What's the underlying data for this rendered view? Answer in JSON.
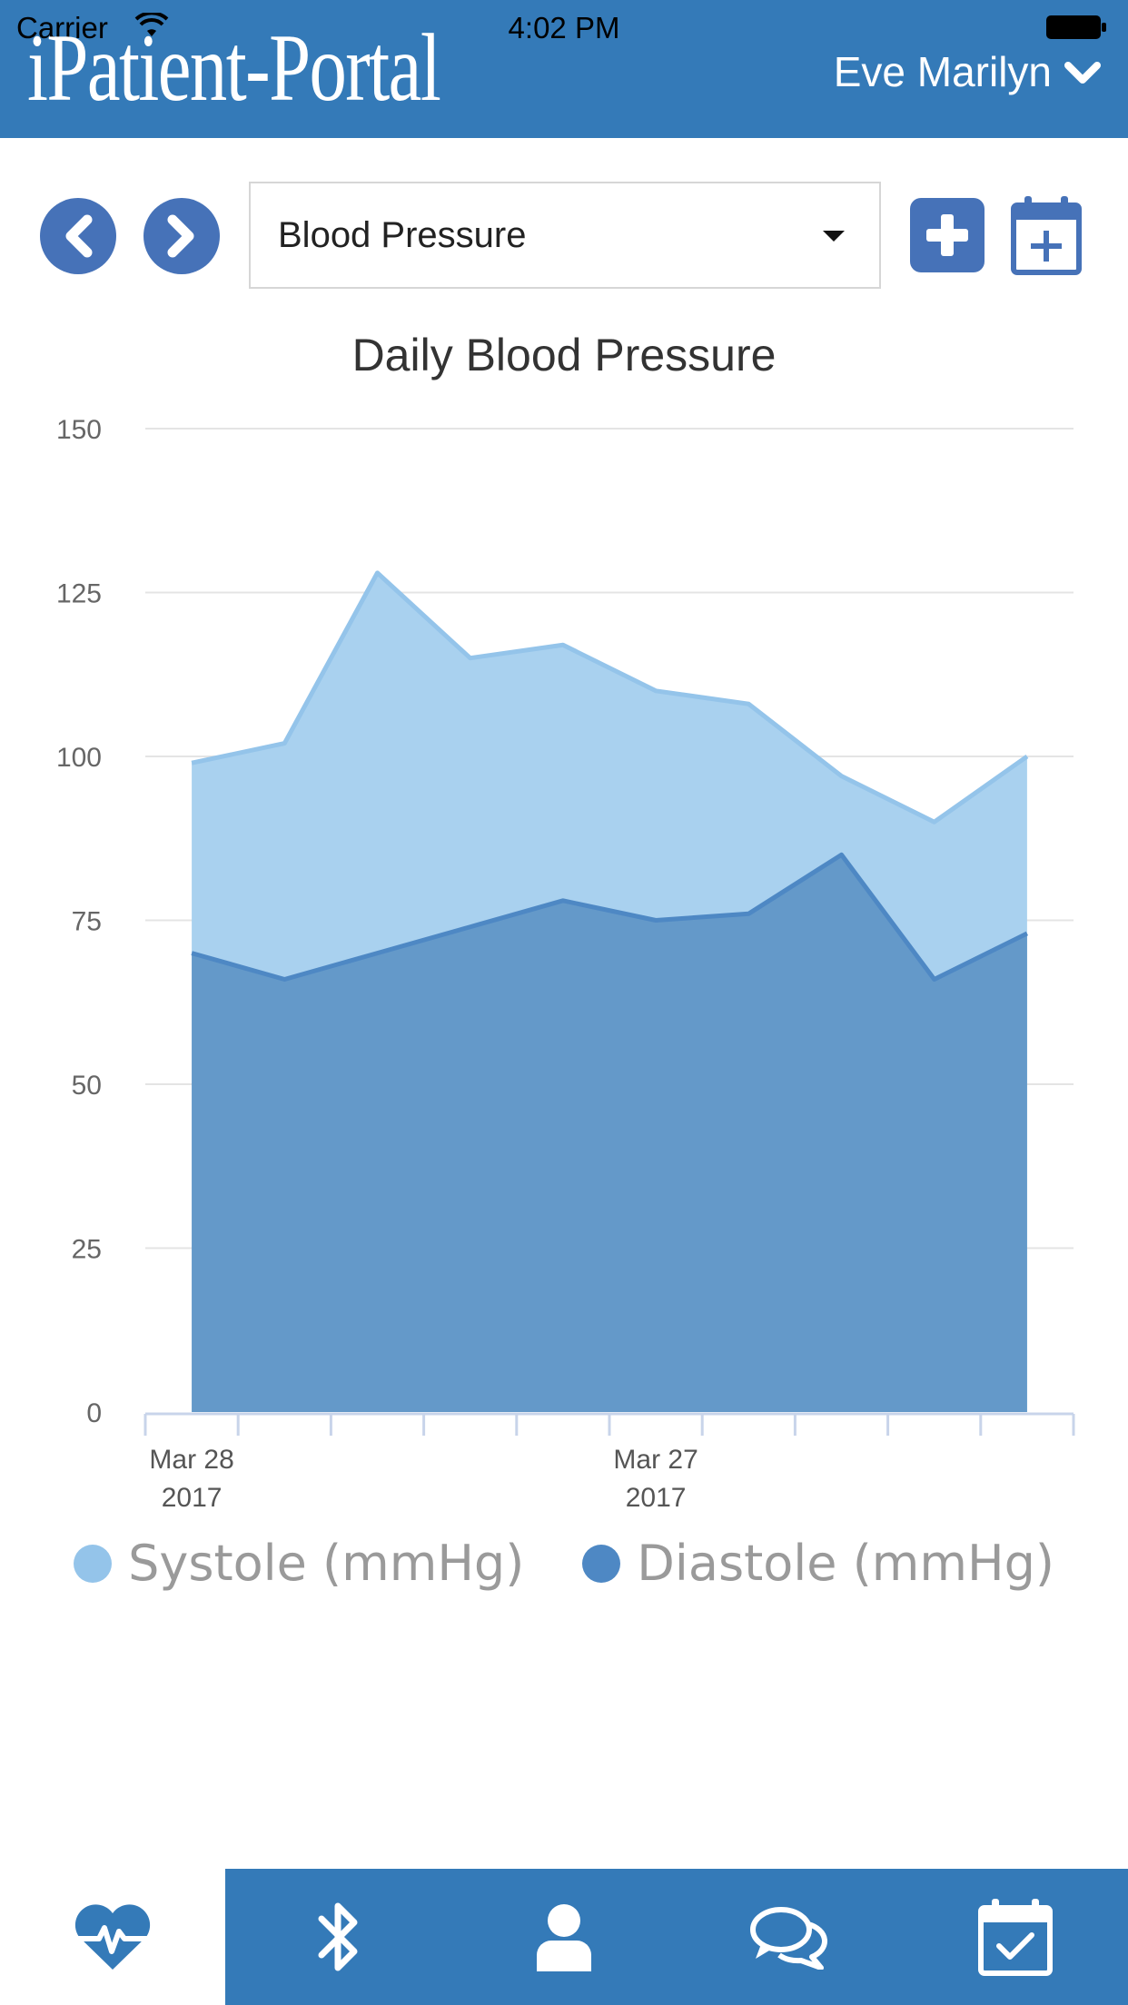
{
  "status_bar": {
    "carrier": "Carrier",
    "time": "4:02 PM"
  },
  "header": {
    "brand": "iPatient-Portal",
    "user_name": "Eve Marilyn"
  },
  "toolbar": {
    "metric_selected": "Blood Pressure"
  },
  "colors": {
    "brand": "#347ab8",
    "button": "#4672b8",
    "systole": "#94c4ea",
    "diastole": "#4e88c4"
  },
  "chart_data": {
    "type": "area",
    "title": "Daily Blood Pressure",
    "ylim": [
      0,
      150
    ],
    "y_ticks": [
      0,
      25,
      50,
      75,
      100,
      125,
      150
    ],
    "x_tick_labels": [
      {
        "index": 0,
        "line1": "Mar 28",
        "line2": "2017"
      },
      {
        "index": 5,
        "line1": "Mar 27",
        "line2": "2017"
      }
    ],
    "x_count": 10,
    "series": [
      {
        "name": "Systole (mmHg)",
        "values": [
          99,
          102,
          128,
          115,
          117,
          110,
          108,
          97,
          90,
          100
        ]
      },
      {
        "name": "Diastole (mmHg)",
        "values": [
          70,
          66,
          70,
          74,
          78,
          75,
          76,
          85,
          66,
          73
        ]
      }
    ],
    "grid": true,
    "legend_position": "bottom"
  },
  "tabs": [
    {
      "icon": "heart-pulse-icon",
      "active": true
    },
    {
      "icon": "bluetooth-icon",
      "active": false
    },
    {
      "icon": "user-icon",
      "active": false
    },
    {
      "icon": "chat-icon",
      "active": false
    },
    {
      "icon": "calendar-check-icon",
      "active": false
    }
  ]
}
